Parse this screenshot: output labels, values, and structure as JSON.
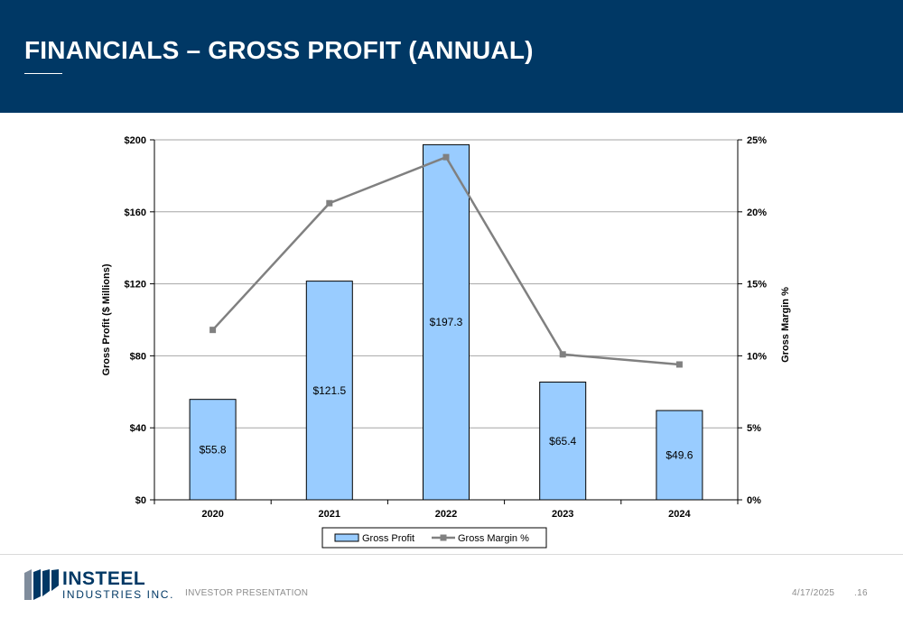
{
  "header": {
    "title": "FINANCIALS – GROSS PROFIT (ANNUAL)"
  },
  "chart_data": {
    "type": "bar",
    "title": "",
    "categories": [
      "2020",
      "2021",
      "2022",
      "2023",
      "2024"
    ],
    "series": [
      {
        "name": "Gross Profit",
        "type": "bar",
        "axis": "left",
        "values": [
          55.8,
          121.5,
          197.3,
          65.4,
          49.6
        ],
        "data_labels": [
          "$55.8",
          "$121.5",
          "$197.3",
          "$65.4",
          "$49.6"
        ],
        "color": "#99ccff"
      },
      {
        "name": "Gross Margin %",
        "type": "line",
        "axis": "right",
        "values": [
          11.8,
          20.6,
          23.8,
          10.1,
          9.4
        ],
        "color": "#808080"
      }
    ],
    "ylabel": "Gross Profit ($ Millions)",
    "ylim": [
      0,
      200
    ],
    "yticks": [
      0,
      40,
      80,
      120,
      160,
      200
    ],
    "ytick_labels": [
      "$0",
      "$40",
      "$80",
      "$120",
      "$160",
      "$200"
    ],
    "y2label": "Gross Margin %",
    "y2lim": [
      0,
      25
    ],
    "y2ticks": [
      0,
      5,
      10,
      15,
      20,
      25
    ],
    "y2tick_labels": [
      "0%",
      "5%",
      "10%",
      "15%",
      "20%",
      "25%"
    ],
    "grid": true,
    "legend": "bottom-center"
  },
  "footer": {
    "company_name": "INSTEEL",
    "company_sub": "INDUSTRIES INC.",
    "label": "INVESTOR PRESENTATION",
    "date": "4/17/2025",
    "page": ".16"
  },
  "colors": {
    "header_bg": "#003865",
    "logo_blue": "#003865",
    "logo_gray": "#7f8c9c",
    "bar_fill": "#99ccff",
    "line_color": "#808080"
  }
}
